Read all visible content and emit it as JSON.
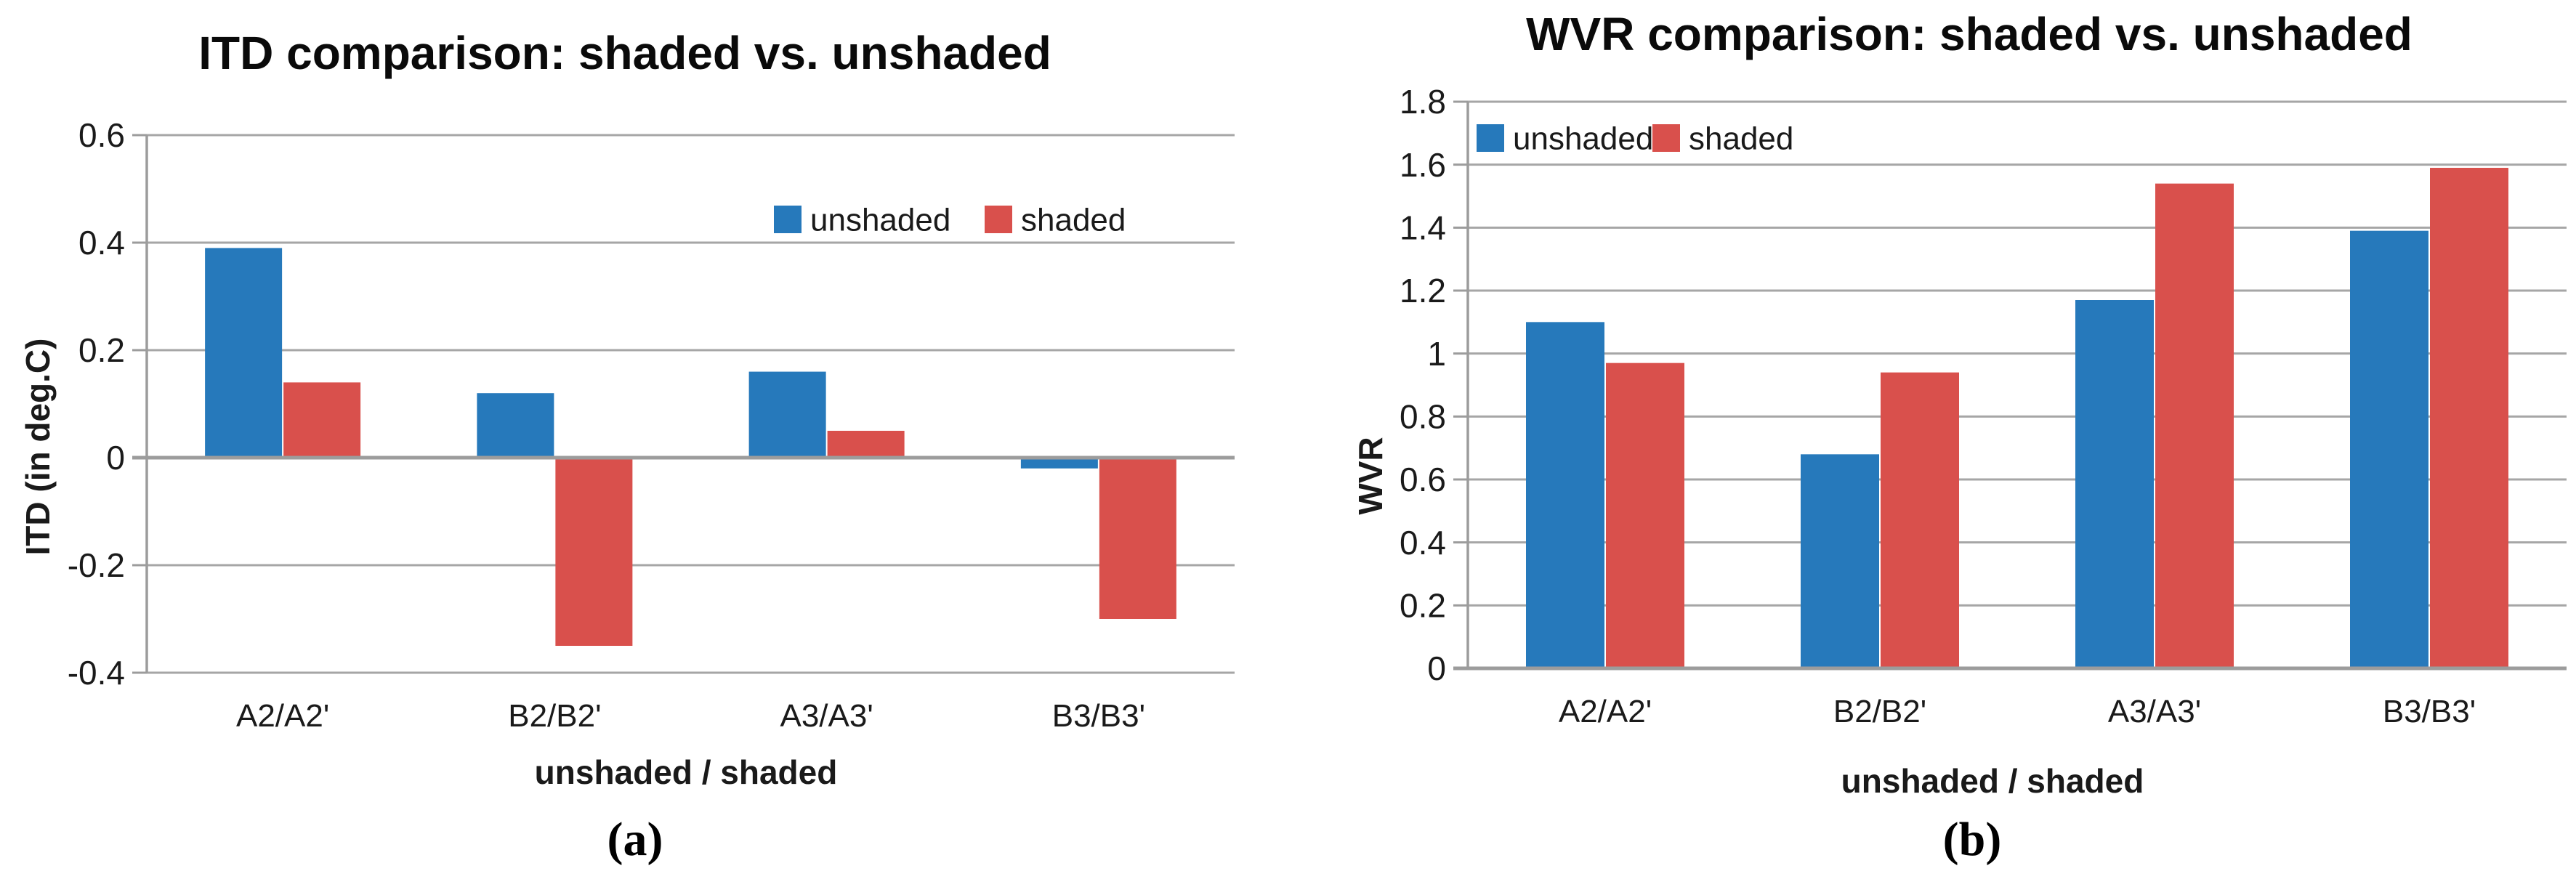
{
  "page": {
    "background": "#ffffff",
    "grid_color": "#A6A6A6",
    "axis_color": "#9C9C9C",
    "text_color": "#1a1a1a"
  },
  "chart_data": [
    {
      "type": "bar",
      "title": "ITD comparison: shaded vs. unshaded",
      "xlabel": "unshaded / shaded",
      "ylabel": "ITD (in deg.C)",
      "sublabel": "(a)",
      "categories": [
        "A2/A2'",
        "B2/B2'",
        "A3/A3'",
        "B3/B3'"
      ],
      "series": [
        {
          "name": "unshaded",
          "color": "#2679BB",
          "values": [
            0.39,
            0.12,
            0.16,
            -0.02
          ]
        },
        {
          "name": "shaded",
          "color": "#D9504C",
          "values": [
            0.14,
            -0.35,
            0.05,
            -0.3
          ]
        }
      ],
      "ylim": [
        -0.4,
        0.6
      ],
      "ytick_step": 0.2,
      "yticks": [
        "0.6",
        "0.4",
        "0.2",
        "0",
        "-0.2",
        "-0.4"
      ],
      "grid": true,
      "legend_position": "top-right-inside"
    },
    {
      "type": "bar",
      "title": "WVR comparison: shaded vs. unshaded",
      "xlabel": "unshaded / shaded",
      "ylabel": "WVR",
      "sublabel": "(b)",
      "categories": [
        "A2/A2'",
        "B2/B2'",
        "A3/A3'",
        "B3/B3'"
      ],
      "series": [
        {
          "name": "unshaded",
          "color": "#2679BB",
          "values": [
            1.1,
            0.68,
            1.17,
            1.39
          ]
        },
        {
          "name": "shaded",
          "color": "#D9504C",
          "values": [
            0.97,
            0.94,
            1.54,
            1.59
          ]
        }
      ],
      "ylim": [
        0,
        1.8
      ],
      "ytick_step": 0.2,
      "yticks": [
        "1.8",
        "1.6",
        "1.4",
        "1.2",
        "1",
        "0.8",
        "0.6",
        "0.4",
        "0.2",
        "0"
      ],
      "grid": true,
      "legend_position": "top-left-inside"
    }
  ]
}
